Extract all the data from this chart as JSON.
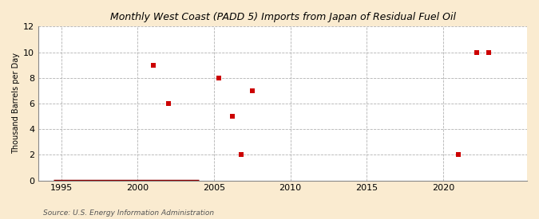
{
  "title": "Monthly West Coast (PADD 5) Imports from Japan of Residual Fuel Oil",
  "ylabel": "Thousand Barrels per Day",
  "source": "Source: U.S. Energy Information Administration",
  "fig_background_color": "#faebd0",
  "plot_background_color": "#ffffff",
  "xlim": [
    1993.5,
    2025.5
  ],
  "ylim": [
    0,
    12
  ],
  "yticks": [
    0,
    2,
    4,
    6,
    8,
    10,
    12
  ],
  "xticks": [
    1995,
    2000,
    2005,
    2010,
    2015,
    2020
  ],
  "scatter_x": [
    2001.0,
    2002.0,
    2005.3,
    2006.2,
    2006.8,
    2007.5,
    2021.0,
    2022.2,
    2023.0
  ],
  "scatter_y": [
    9,
    6,
    8,
    5,
    2,
    7,
    2,
    10,
    10
  ],
  "line_x_start": 1994.5,
  "line_x_end": 2004.0,
  "marker_color": "#cc0000",
  "line_color": "#8b0000",
  "marker_size": 18,
  "line_width": 2.5
}
